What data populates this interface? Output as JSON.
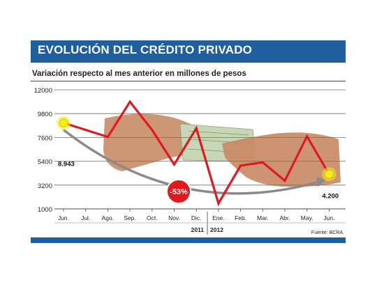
{
  "header": {
    "title": "EVOLUCIÓN DEL CRÉDITO PRIVADO",
    "subtitle": "Variación respecto al mes anterior en millones de pesos"
  },
  "source": "Fuente: BCRA.",
  "colors": {
    "header_blue": "#1e5fa0",
    "line_red": "#e0191f",
    "marker_yellow": "#f3ee1a",
    "badge_red": "#e0191f",
    "arrow_gray": "#8a8a8a",
    "grid": "#6e6e6e"
  },
  "decor": {
    "photo": "hands-exchanging-money-photo"
  },
  "chart_data": {
    "type": "line",
    "title": "EVOLUCIÓN DEL CRÉDITO PRIVADO",
    "subtitle": "Variación respecto al mes anterior en millones de pesos",
    "categories": [
      "Jun.",
      "Jul.",
      "Ago.",
      "Sep.",
      "Oct.",
      "Nov.",
      "Dic.",
      "Ene.",
      "Feb.",
      "Mar.",
      "Abr.",
      "May.",
      "Jun."
    ],
    "year_labels": [
      {
        "label": "2011",
        "first_index": 0,
        "last_index": 6
      },
      {
        "label": "2012",
        "first_index": 7,
        "last_index": 12
      }
    ],
    "series": [
      {
        "values": [
          8943,
          8300,
          7650,
          10900,
          8300,
          5100,
          8450,
          1500,
          5000,
          5300,
          3600,
          7700,
          4200
        ]
      }
    ],
    "ylim": [
      1000,
      12000
    ],
    "yticks": [
      1000,
      3200,
      5400,
      7600,
      9800,
      12000
    ],
    "ytick_labels": [
      "1000",
      "3200",
      "5400",
      "7600",
      "9800",
      "12000"
    ],
    "grid": true,
    "start_label": "8.943",
    "end_label": "4.200",
    "change_label": "-53%"
  }
}
